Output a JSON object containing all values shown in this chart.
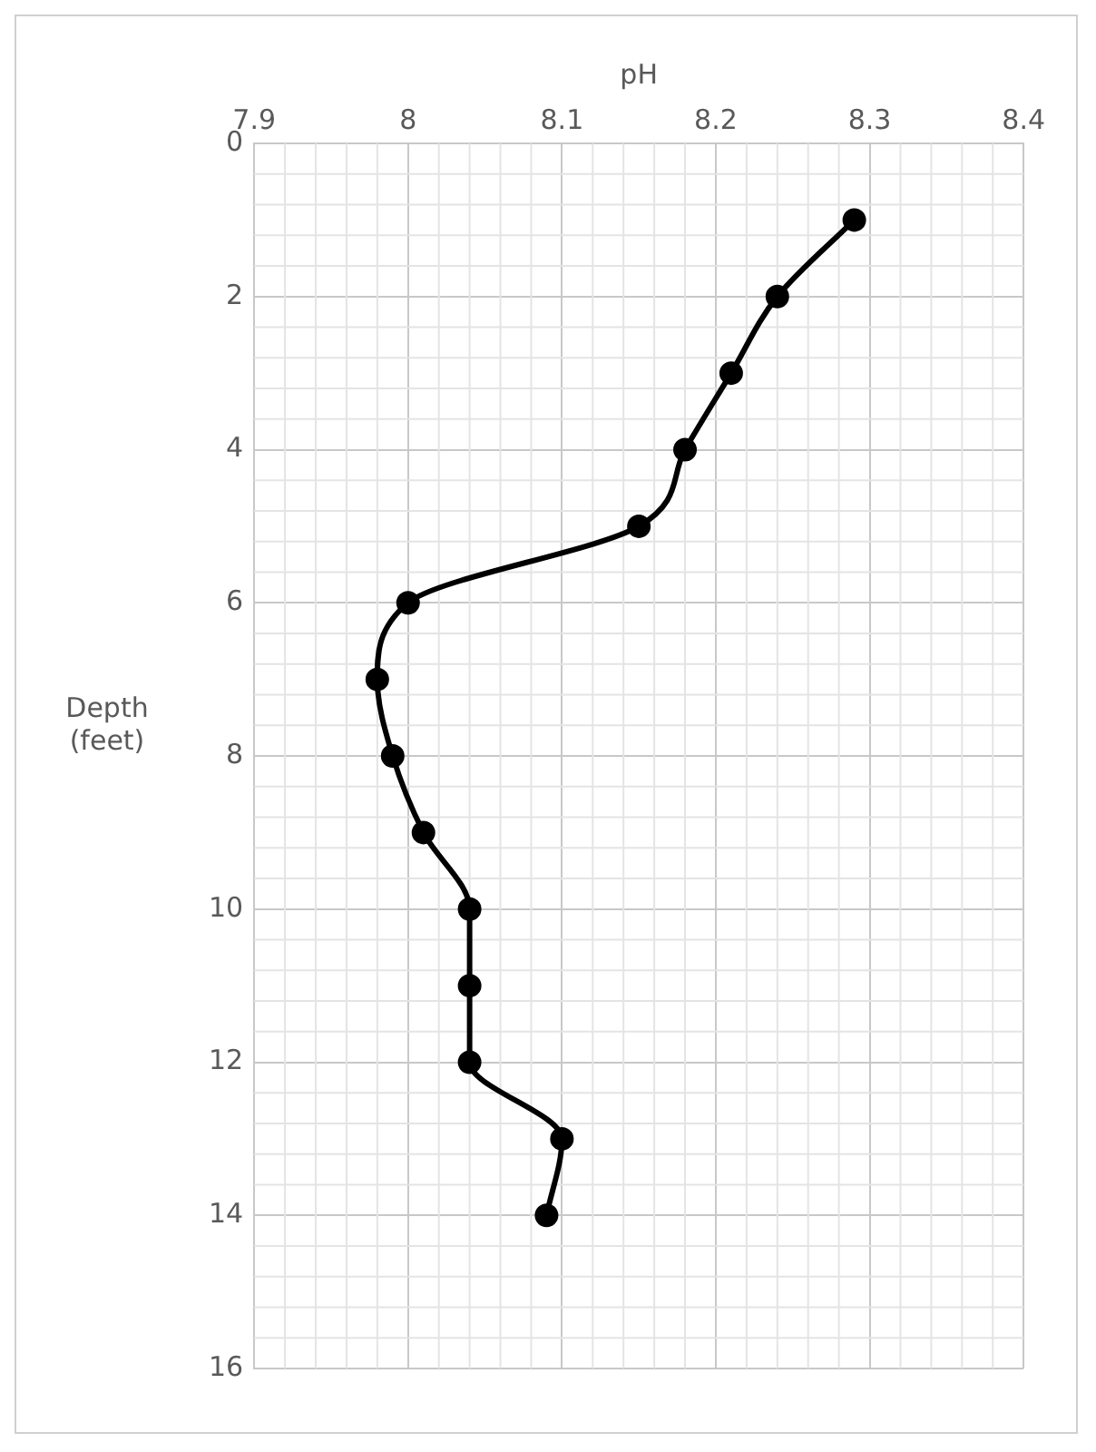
{
  "chart_data": {
    "type": "line",
    "xlabel": "pH",
    "ylabel": "Depth\n(feet)",
    "series": [
      {
        "color": "#000000",
        "x": [
          8.29,
          8.24,
          8.21,
          8.18,
          8.15,
          8.0,
          7.98,
          7.99,
          8.01,
          8.04,
          8.04,
          8.04,
          8.1,
          8.09
        ],
        "values": [
          1,
          2,
          3,
          4,
          5,
          6,
          7,
          8,
          9,
          10,
          11,
          12,
          13,
          14
        ]
      }
    ],
    "xlim": [
      7.9,
      8.4
    ],
    "xticks": [
      7.9,
      8,
      8.1,
      8.2,
      8.3,
      8.4
    ],
    "ylim": [
      16,
      0
    ],
    "yticks": [
      0,
      2,
      4,
      6,
      8,
      10,
      12,
      14,
      16
    ],
    "grid": true,
    "legend": false,
    "marker": "circle",
    "line_style": "solid"
  }
}
